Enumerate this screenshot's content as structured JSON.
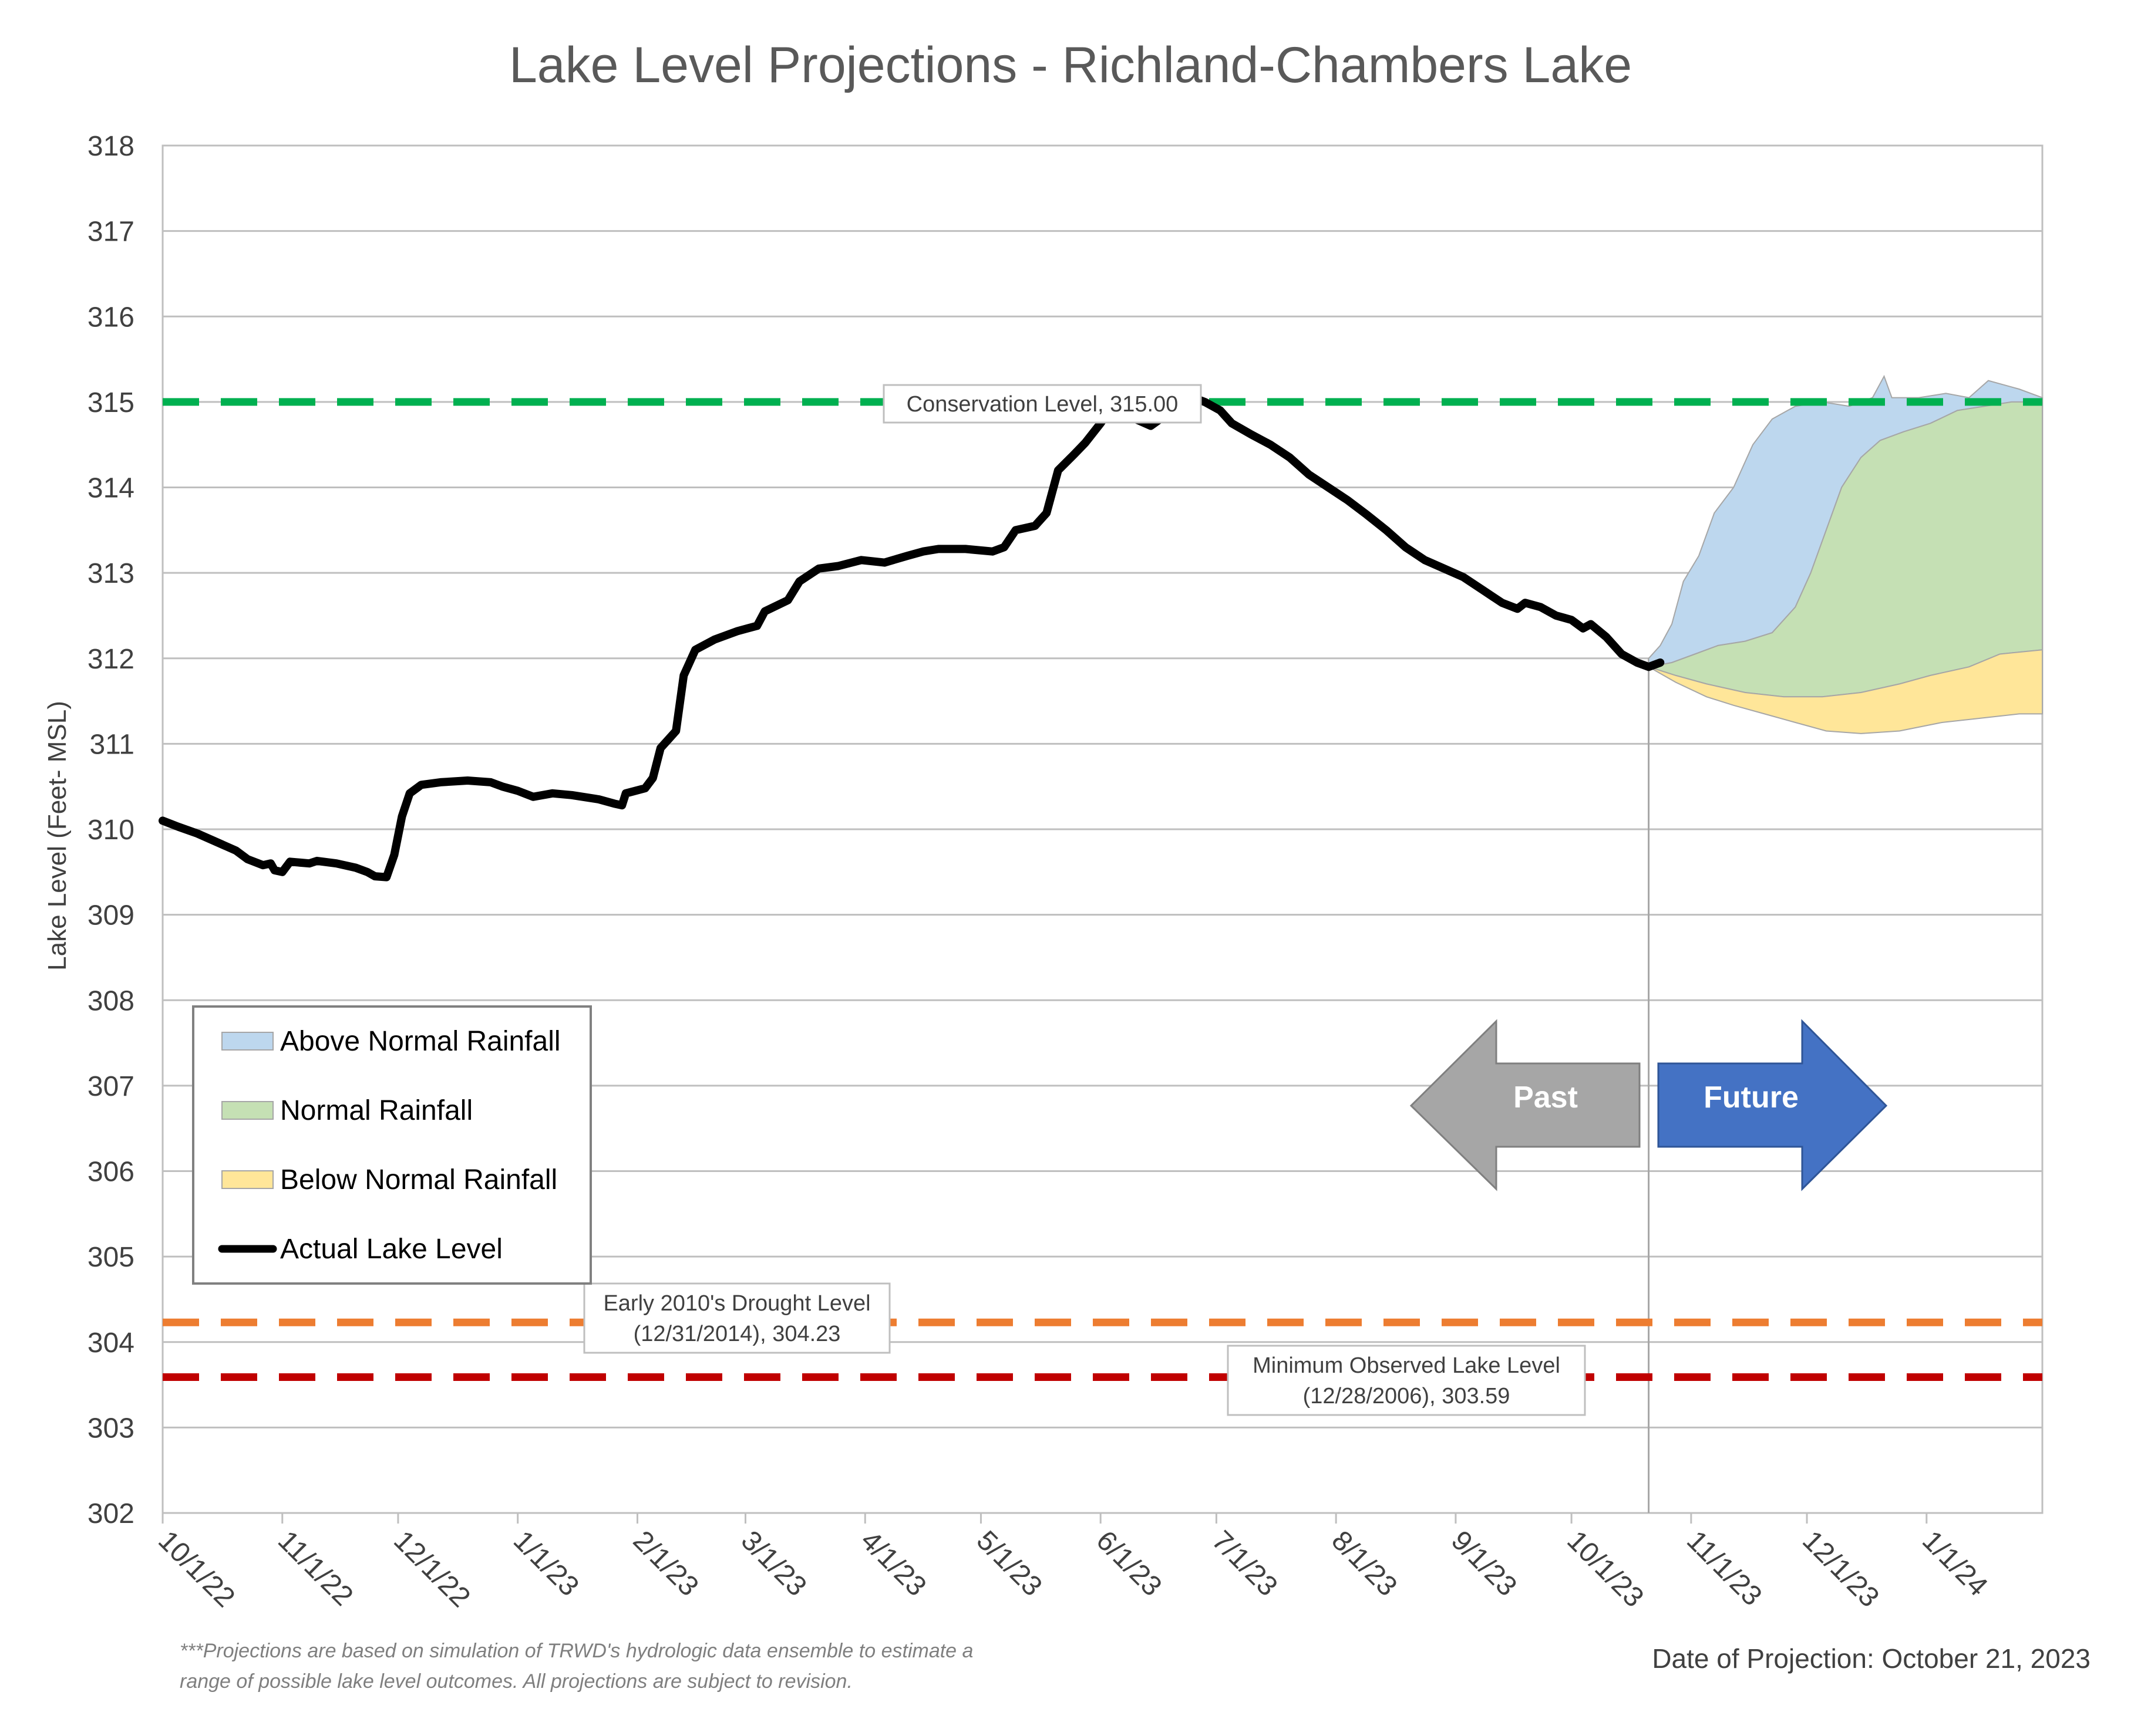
{
  "chart_data": {
    "type": "line",
    "title": "Lake Level Projections - Richland-Chambers Lake",
    "ylabel": "Lake Level (Feet- MSL)",
    "xlabel": "",
    "ylim": [
      302,
      318
    ],
    "yticks": [
      "302",
      "303",
      "304",
      "305",
      "306",
      "307",
      "308",
      "309",
      "310",
      "311",
      "312",
      "313",
      "314",
      "315",
      "316",
      "317",
      "318"
    ],
    "xlim": [
      "2022-10-01",
      "2024-01-31"
    ],
    "xticks": [
      {
        "date": "2022-10-01",
        "label": "10/1/22"
      },
      {
        "date": "2022-11-01",
        "label": "11/1/22"
      },
      {
        "date": "2022-12-01",
        "label": "12/1/22"
      },
      {
        "date": "2023-01-01",
        "label": "1/1/23"
      },
      {
        "date": "2023-02-01",
        "label": "2/1/23"
      },
      {
        "date": "2023-03-01",
        "label": "3/1/23"
      },
      {
        "date": "2023-04-01",
        "label": "4/1/23"
      },
      {
        "date": "2023-05-01",
        "label": "5/1/23"
      },
      {
        "date": "2023-06-01",
        "label": "6/1/23"
      },
      {
        "date": "2023-07-01",
        "label": "7/1/23"
      },
      {
        "date": "2023-08-01",
        "label": "8/1/23"
      },
      {
        "date": "2023-09-01",
        "label": "9/1/23"
      },
      {
        "date": "2023-10-01",
        "label": "10/1/23"
      },
      {
        "date": "2023-11-01",
        "label": "11/1/23"
      },
      {
        "date": "2023-12-01",
        "label": "12/1/23"
      },
      {
        "date": "2024-01-01",
        "label": "1/1/24"
      }
    ],
    "grid": true,
    "legend_position": "bottom-left",
    "legend": [
      {
        "label": "Above Normal Rainfall",
        "kind": "area",
        "color": "#bdd7ee"
      },
      {
        "label": "Normal Rainfall",
        "kind": "area",
        "color": "#c5e0b4"
      },
      {
        "label": "Below Normal Rainfall",
        "kind": "area",
        "color": "#ffe699"
      },
      {
        "label": "Actual Lake Level",
        "kind": "line",
        "color": "#000000"
      }
    ],
    "reference_lines": [
      {
        "name": "Conservation Level",
        "value": 315.0,
        "color": "#00b050",
        "label_lines": [
          "Conservation Level, 315.00"
        ]
      },
      {
        "name": "Early 2010's Drought Level",
        "value": 304.23,
        "color": "#ed7d31",
        "label_lines": [
          "Early 2010's Drought Level",
          "(12/31/2014), 304.23"
        ]
      },
      {
        "name": "Minimum Observed Lake Level",
        "value": 303.59,
        "color": "#c00000",
        "label_lines": [
          "Minimum Observed Lake Level",
          "(12/28/2006), 303.59"
        ]
      }
    ],
    "projection_start": "2023-10-21",
    "series": [
      {
        "name": "Actual Lake Level",
        "color": "#000000",
        "points": [
          [
            "2022-10-01",
            310.1
          ],
          [
            "2022-10-05",
            310.03
          ],
          [
            "2022-10-10",
            309.95
          ],
          [
            "2022-10-15",
            309.85
          ],
          [
            "2022-10-20",
            309.75
          ],
          [
            "2022-10-23",
            309.65
          ],
          [
            "2022-10-27",
            309.58
          ],
          [
            "2022-10-29",
            309.6
          ],
          [
            "2022-10-30",
            309.52
          ],
          [
            "2022-11-01",
            309.5
          ],
          [
            "2022-11-03",
            309.62
          ],
          [
            "2022-11-08",
            309.6
          ],
          [
            "2022-11-10",
            309.63
          ],
          [
            "2022-11-15",
            309.6
          ],
          [
            "2022-11-20",
            309.55
          ],
          [
            "2022-11-23",
            309.5
          ],
          [
            "2022-11-25",
            309.45
          ],
          [
            "2022-11-28",
            309.44
          ],
          [
            "2022-11-30",
            309.7
          ],
          [
            "2022-12-02",
            310.15
          ],
          [
            "2022-12-04",
            310.42
          ],
          [
            "2022-12-07",
            310.52
          ],
          [
            "2022-12-12",
            310.55
          ],
          [
            "2022-12-19",
            310.57
          ],
          [
            "2022-12-25",
            310.55
          ],
          [
            "2022-12-28",
            310.5
          ],
          [
            "2023-01-01",
            310.45
          ],
          [
            "2023-01-05",
            310.38
          ],
          [
            "2023-01-10",
            310.42
          ],
          [
            "2023-01-15",
            310.4
          ],
          [
            "2023-01-22",
            310.35
          ],
          [
            "2023-01-26",
            310.3
          ],
          [
            "2023-01-28",
            310.28
          ],
          [
            "2023-01-29",
            310.42
          ],
          [
            "2023-02-03",
            310.48
          ],
          [
            "2023-02-05",
            310.6
          ],
          [
            "2023-02-07",
            310.95
          ],
          [
            "2023-02-11",
            311.15
          ],
          [
            "2023-02-13",
            311.8
          ],
          [
            "2023-02-16",
            312.1
          ],
          [
            "2023-02-21",
            312.22
          ],
          [
            "2023-02-27",
            312.32
          ],
          [
            "2023-03-04",
            312.38
          ],
          [
            "2023-03-06",
            312.55
          ],
          [
            "2023-03-12",
            312.68
          ],
          [
            "2023-03-15",
            312.9
          ],
          [
            "2023-03-20",
            313.05
          ],
          [
            "2023-03-25",
            313.08
          ],
          [
            "2023-03-31",
            313.15
          ],
          [
            "2023-04-06",
            313.12
          ],
          [
            "2023-04-12",
            313.2
          ],
          [
            "2023-04-16",
            313.25
          ],
          [
            "2023-04-20",
            313.28
          ],
          [
            "2023-04-27",
            313.28
          ],
          [
            "2023-05-04",
            313.25
          ],
          [
            "2023-05-07",
            313.3
          ],
          [
            "2023-05-10",
            313.5
          ],
          [
            "2023-05-15",
            313.55
          ],
          [
            "2023-05-18",
            313.7
          ],
          [
            "2023-05-21",
            314.2
          ],
          [
            "2023-05-25",
            314.38
          ],
          [
            "2023-05-28",
            314.52
          ],
          [
            "2023-06-01",
            314.75
          ],
          [
            "2023-06-04",
            314.95
          ],
          [
            "2023-06-07",
            315.05
          ],
          [
            "2023-06-10",
            314.8
          ],
          [
            "2023-06-14",
            314.72
          ],
          [
            "2023-06-18",
            314.85
          ],
          [
            "2023-06-22",
            314.98
          ],
          [
            "2023-06-25",
            315.05
          ],
          [
            "2023-06-28",
            315.0
          ],
          [
            "2023-07-02",
            314.9
          ],
          [
            "2023-07-05",
            314.75
          ],
          [
            "2023-07-10",
            314.62
          ],
          [
            "2023-07-15",
            314.5
          ],
          [
            "2023-07-20",
            314.35
          ],
          [
            "2023-07-25",
            314.15
          ],
          [
            "2023-07-30",
            314.0
          ],
          [
            "2023-08-04",
            313.85
          ],
          [
            "2023-08-09",
            313.68
          ],
          [
            "2023-08-14",
            313.5
          ],
          [
            "2023-08-19",
            313.3
          ],
          [
            "2023-08-24",
            313.15
          ],
          [
            "2023-08-29",
            313.05
          ],
          [
            "2023-09-03",
            312.95
          ],
          [
            "2023-09-08",
            312.8
          ],
          [
            "2023-09-13",
            312.65
          ],
          [
            "2023-09-17",
            312.58
          ],
          [
            "2023-09-19",
            312.65
          ],
          [
            "2023-09-23",
            312.6
          ],
          [
            "2023-09-27",
            312.5
          ],
          [
            "2023-10-01",
            312.45
          ],
          [
            "2023-10-04",
            312.35
          ],
          [
            "2023-10-06",
            312.4
          ],
          [
            "2023-10-10",
            312.25
          ],
          [
            "2023-10-14",
            312.05
          ],
          [
            "2023-10-18",
            311.95
          ],
          [
            "2023-10-21",
            311.9
          ],
          [
            "2023-10-24",
            311.95
          ]
        ]
      }
    ],
    "projection_areas": [
      {
        "name": "Above Normal Rainfall",
        "color": "#bdd7ee",
        "upper": [
          [
            "2023-10-21",
            312.0
          ],
          [
            "2023-10-24",
            312.15
          ],
          [
            "2023-10-27",
            312.4
          ],
          [
            "2023-10-30",
            312.9
          ],
          [
            "2023-11-03",
            313.2
          ],
          [
            "2023-11-07",
            313.7
          ],
          [
            "2023-11-12",
            314.0
          ],
          [
            "2023-11-17",
            314.5
          ],
          [
            "2023-11-22",
            314.8
          ],
          [
            "2023-11-28",
            314.95
          ],
          [
            "2023-12-05",
            315.0
          ],
          [
            "2023-12-12",
            314.95
          ],
          [
            "2023-12-18",
            315.05
          ],
          [
            "2023-12-21",
            315.3
          ],
          [
            "2023-12-23",
            315.05
          ],
          [
            "2023-12-30",
            315.05
          ],
          [
            "2024-01-06",
            315.1
          ],
          [
            "2024-01-12",
            315.05
          ],
          [
            "2024-01-17",
            315.25
          ],
          [
            "2024-01-25",
            315.15
          ],
          [
            "2024-01-31",
            315.05
          ]
        ],
        "lower_ref": "Normal Rainfall.upper"
      },
      {
        "name": "Normal Rainfall",
        "color": "#c5e0b4",
        "upper": [
          [
            "2023-10-21",
            311.9
          ],
          [
            "2023-10-27",
            311.95
          ],
          [
            "2023-11-02",
            312.05
          ],
          [
            "2023-11-08",
            312.15
          ],
          [
            "2023-11-15",
            312.2
          ],
          [
            "2023-11-22",
            312.3
          ],
          [
            "2023-11-28",
            312.6
          ],
          [
            "2023-12-02",
            313.0
          ],
          [
            "2023-12-06",
            313.5
          ],
          [
            "2023-12-10",
            314.0
          ],
          [
            "2023-12-15",
            314.35
          ],
          [
            "2023-12-20",
            314.55
          ],
          [
            "2023-12-26",
            314.65
          ],
          [
            "2024-01-02",
            314.75
          ],
          [
            "2024-01-09",
            314.9
          ],
          [
            "2024-01-16",
            314.95
          ],
          [
            "2024-01-23",
            315.0
          ],
          [
            "2024-01-31",
            315.0
          ]
        ],
        "lower_ref": "Below Normal Rainfall.upper"
      },
      {
        "name": "Below Normal Rainfall",
        "color": "#ffe699",
        "upper": [
          [
            "2023-10-21",
            311.9
          ],
          [
            "2023-10-28",
            311.8
          ],
          [
            "2023-11-05",
            311.7
          ],
          [
            "2023-11-15",
            311.6
          ],
          [
            "2023-11-25",
            311.55
          ],
          [
            "2023-12-05",
            311.55
          ],
          [
            "2023-12-15",
            311.6
          ],
          [
            "2023-12-25",
            311.7
          ],
          [
            "2024-01-02",
            311.8
          ],
          [
            "2024-01-12",
            311.9
          ],
          [
            "2024-01-20",
            312.05
          ],
          [
            "2024-01-31",
            312.1
          ]
        ],
        "lower": [
          [
            "2023-10-21",
            311.9
          ],
          [
            "2023-10-28",
            311.72
          ],
          [
            "2023-11-05",
            311.55
          ],
          [
            "2023-11-12",
            311.45
          ],
          [
            "2023-11-20",
            311.35
          ],
          [
            "2023-11-28",
            311.25
          ],
          [
            "2023-12-06",
            311.15
          ],
          [
            "2023-12-15",
            311.12
          ],
          [
            "2023-12-25",
            311.15
          ],
          [
            "2024-01-05",
            311.25
          ],
          [
            "2024-01-15",
            311.3
          ],
          [
            "2024-01-25",
            311.35
          ],
          [
            "2024-01-31",
            311.35
          ]
        ]
      }
    ],
    "direction_arrows": [
      {
        "label": "Past",
        "direction": "left",
        "color": "#a6a6a6"
      },
      {
        "label": "Future",
        "direction": "right",
        "color": "#4472c4"
      }
    ]
  },
  "footnote_lines": [
    "***Projections are based on simulation of TRWD's hydrologic data ensemble to estimate a",
    "range of possible lake level outcomes.  All projections are subject to revision."
  ],
  "projection_date": "Date of Projection: October 21, 2023"
}
